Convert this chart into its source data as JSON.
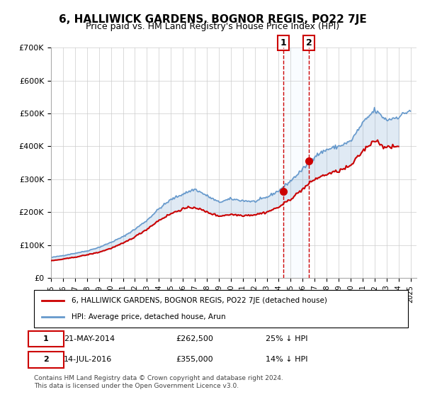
{
  "title": "6, HALLIWICK GARDENS, BOGNOR REGIS, PO22 7JE",
  "subtitle": "Price paid vs. HM Land Registry's House Price Index (HPI)",
  "ylabel": "",
  "xlabel": "",
  "ylim": [
    0,
    700000
  ],
  "yticks": [
    0,
    100000,
    200000,
    300000,
    400000,
    500000,
    600000,
    700000
  ],
  "ytick_labels": [
    "£0",
    "£100K",
    "£200K",
    "£300K",
    "£400K",
    "£500K",
    "£600K",
    "£700K"
  ],
  "background_color": "#ffffff",
  "grid_color": "#cccccc",
  "hpi_color": "#6699cc",
  "price_color": "#cc0000",
  "annotation_bg": "#ddeeff",
  "annotation_border": "#cc0000",
  "legend_label_price": "6, HALLIWICK GARDENS, BOGNOR REGIS, PO22 7JE (detached house)",
  "legend_label_hpi": "HPI: Average price, detached house, Arun",
  "transaction1_date": "21-MAY-2014",
  "transaction1_price": "£262,500",
  "transaction1_hpi": "25% ↓ HPI",
  "transaction2_date": "14-JUL-2016",
  "transaction2_price": "£355,000",
  "transaction2_hpi": "14% ↓ HPI",
  "footer": "Contains HM Land Registry data © Crown copyright and database right 2024.\nThis data is licensed under the Open Government Licence v3.0.",
  "hpi_years": [
    1995,
    1996,
    1997,
    1998,
    1999,
    2000,
    2001,
    2002,
    2003,
    2004,
    2005,
    2006,
    2007,
    2008,
    2009,
    2010,
    2011,
    2012,
    2013,
    2014,
    2015,
    2016,
    2017,
    2018,
    2019,
    2020,
    2021,
    2022,
    2023,
    2024,
    2025
  ],
  "hpi_values": [
    62000,
    68000,
    75000,
    82000,
    93000,
    108000,
    125000,
    148000,
    175000,
    210000,
    238000,
    255000,
    270000,
    250000,
    230000,
    240000,
    235000,
    232000,
    245000,
    265000,
    295000,
    330000,
    370000,
    390000,
    400000,
    415000,
    470000,
    510000,
    480000,
    490000,
    510000
  ],
  "price_years": [
    1995,
    1996,
    1997,
    1998,
    1999,
    2000,
    2001,
    2002,
    2003,
    2004,
    2005,
    2006,
    2007,
    2008,
    2009,
    2010,
    2011,
    2012,
    2013,
    2014,
    2015,
    2016,
    2017,
    2018,
    2019,
    2020,
    2021,
    2022,
    2023,
    2024
  ],
  "price_values": [
    52000,
    57000,
    63000,
    70000,
    78000,
    90000,
    105000,
    125000,
    148000,
    175000,
    195000,
    210000,
    215000,
    200000,
    188000,
    193000,
    190000,
    192000,
    200000,
    215000,
    240000,
    270000,
    300000,
    315000,
    325000,
    340000,
    385000,
    420000,
    395000,
    400000
  ],
  "trans1_x": 2014.39,
  "trans1_y": 262500,
  "trans2_x": 2016.53,
  "trans2_y": 355000,
  "xmin": 1995,
  "xmax": 2025.5
}
